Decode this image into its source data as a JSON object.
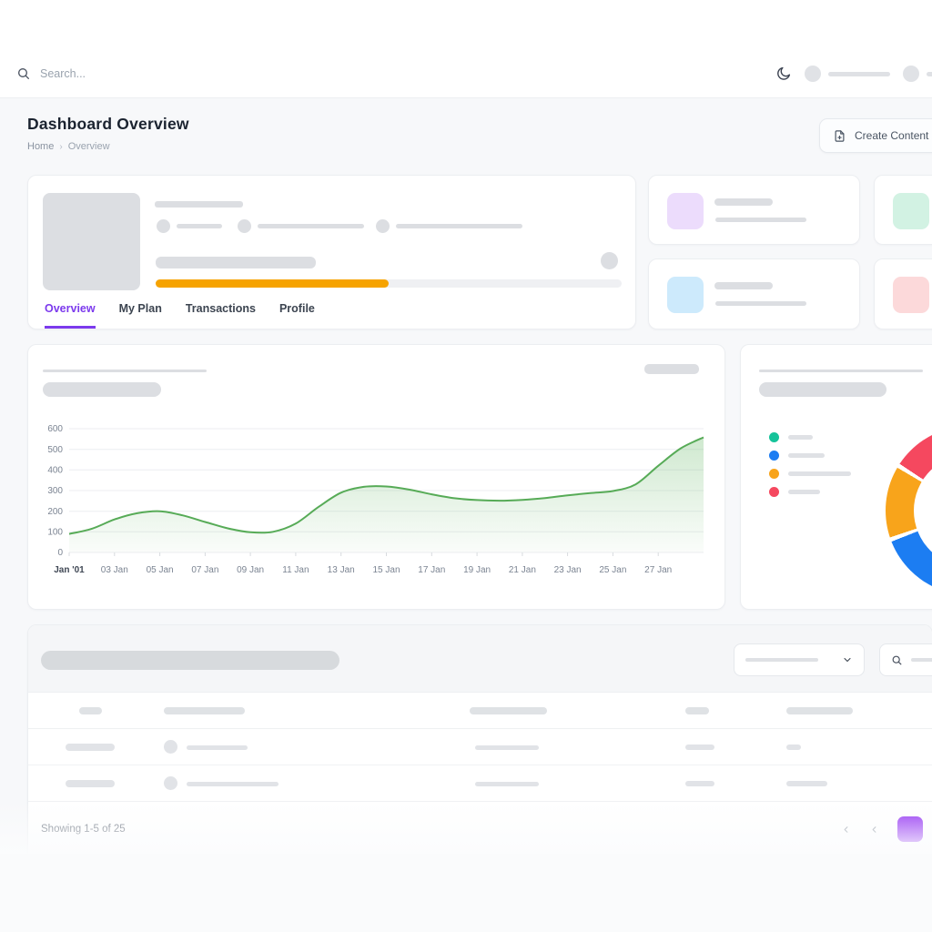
{
  "topbar": {
    "search_placeholder": "Search..."
  },
  "page_header": {
    "title": "Dashboard Overview",
    "breadcrumb": {
      "home": "Home",
      "current": "Overview"
    },
    "create_button_label": "Create Content"
  },
  "profile_card": {
    "tabs": [
      {
        "label": "Overview",
        "active": true
      },
      {
        "label": "My Plan",
        "active": false
      },
      {
        "label": "Transactions",
        "active": false
      },
      {
        "label": "Profile",
        "active": false
      }
    ],
    "active_tab_color": "#7C3AED",
    "progress": {
      "percent": 50,
      "color": "#F6A300"
    }
  },
  "stat_cards": [
    {
      "name": "stat-card-1",
      "tile_color": "#ECDCFC"
    },
    {
      "name": "stat-card-2",
      "tile_color": "#D2F2E3"
    },
    {
      "name": "stat-card-3",
      "tile_color": "#CDEAFC"
    },
    {
      "name": "stat-card-4",
      "tile_color": "#FCD9DA"
    }
  ],
  "chart_data": [
    {
      "type": "area",
      "name": "activity-area-chart",
      "x_tick_labels": [
        "Jan '01",
        "03 Jan",
        "05 Jan",
        "07 Jan",
        "09 Jan",
        "11 Jan",
        "13 Jan",
        "15 Jan",
        "17 Jan",
        "19 Jan",
        "21 Jan",
        "23 Jan",
        "25 Jan",
        "27 Jan"
      ],
      "x_tick_days": [
        1,
        3,
        5,
        7,
        9,
        11,
        13,
        15,
        17,
        19,
        21,
        23,
        25,
        27
      ],
      "days": [
        1,
        2,
        3,
        4,
        5,
        6,
        7,
        8,
        9,
        10,
        11,
        12,
        13,
        14,
        15,
        16,
        17,
        18,
        19,
        20,
        21,
        22,
        23,
        24,
        25,
        26,
        27,
        28,
        29
      ],
      "values": [
        90,
        115,
        160,
        190,
        200,
        180,
        148,
        117,
        98,
        100,
        140,
        220,
        290,
        318,
        320,
        305,
        282,
        263,
        254,
        251,
        255,
        264,
        277,
        288,
        298,
        330,
        420,
        505,
        558
      ],
      "y_ticks": [
        0,
        100,
        200,
        300,
        400,
        500,
        600
      ],
      "ylim": [
        0,
        600
      ],
      "grid": true,
      "line_color": "#57AB57",
      "area_top_color": "rgba(106,185,106,0.32)",
      "area_bottom_color": "rgba(106,185,106,0.03)"
    },
    {
      "type": "donut",
      "name": "distribution-donut-chart",
      "segments": [
        {
          "label": "segment-teal",
          "color": "#15C39A",
          "start_deg": 0,
          "end_deg": 150
        },
        {
          "label": "segment-blue",
          "color": "#1C7DF2",
          "start_deg": 150,
          "end_deg": 250
        },
        {
          "label": "segment-orange",
          "color": "#F8A41B",
          "start_deg": 250,
          "end_deg": 302
        },
        {
          "label": "segment-red",
          "color": "#F5485F",
          "start_deg": 302,
          "end_deg": 360
        }
      ],
      "legend": [
        {
          "color": "#15C39A"
        },
        {
          "color": "#1C7DF2"
        },
        {
          "color": "#F8A41B"
        },
        {
          "color": "#F5485F"
        }
      ],
      "legend_position": "left"
    }
  ],
  "table_section": {
    "pagination_text": "Showing 1-5 of 25",
    "page_button_color": "#8F2BF2"
  }
}
